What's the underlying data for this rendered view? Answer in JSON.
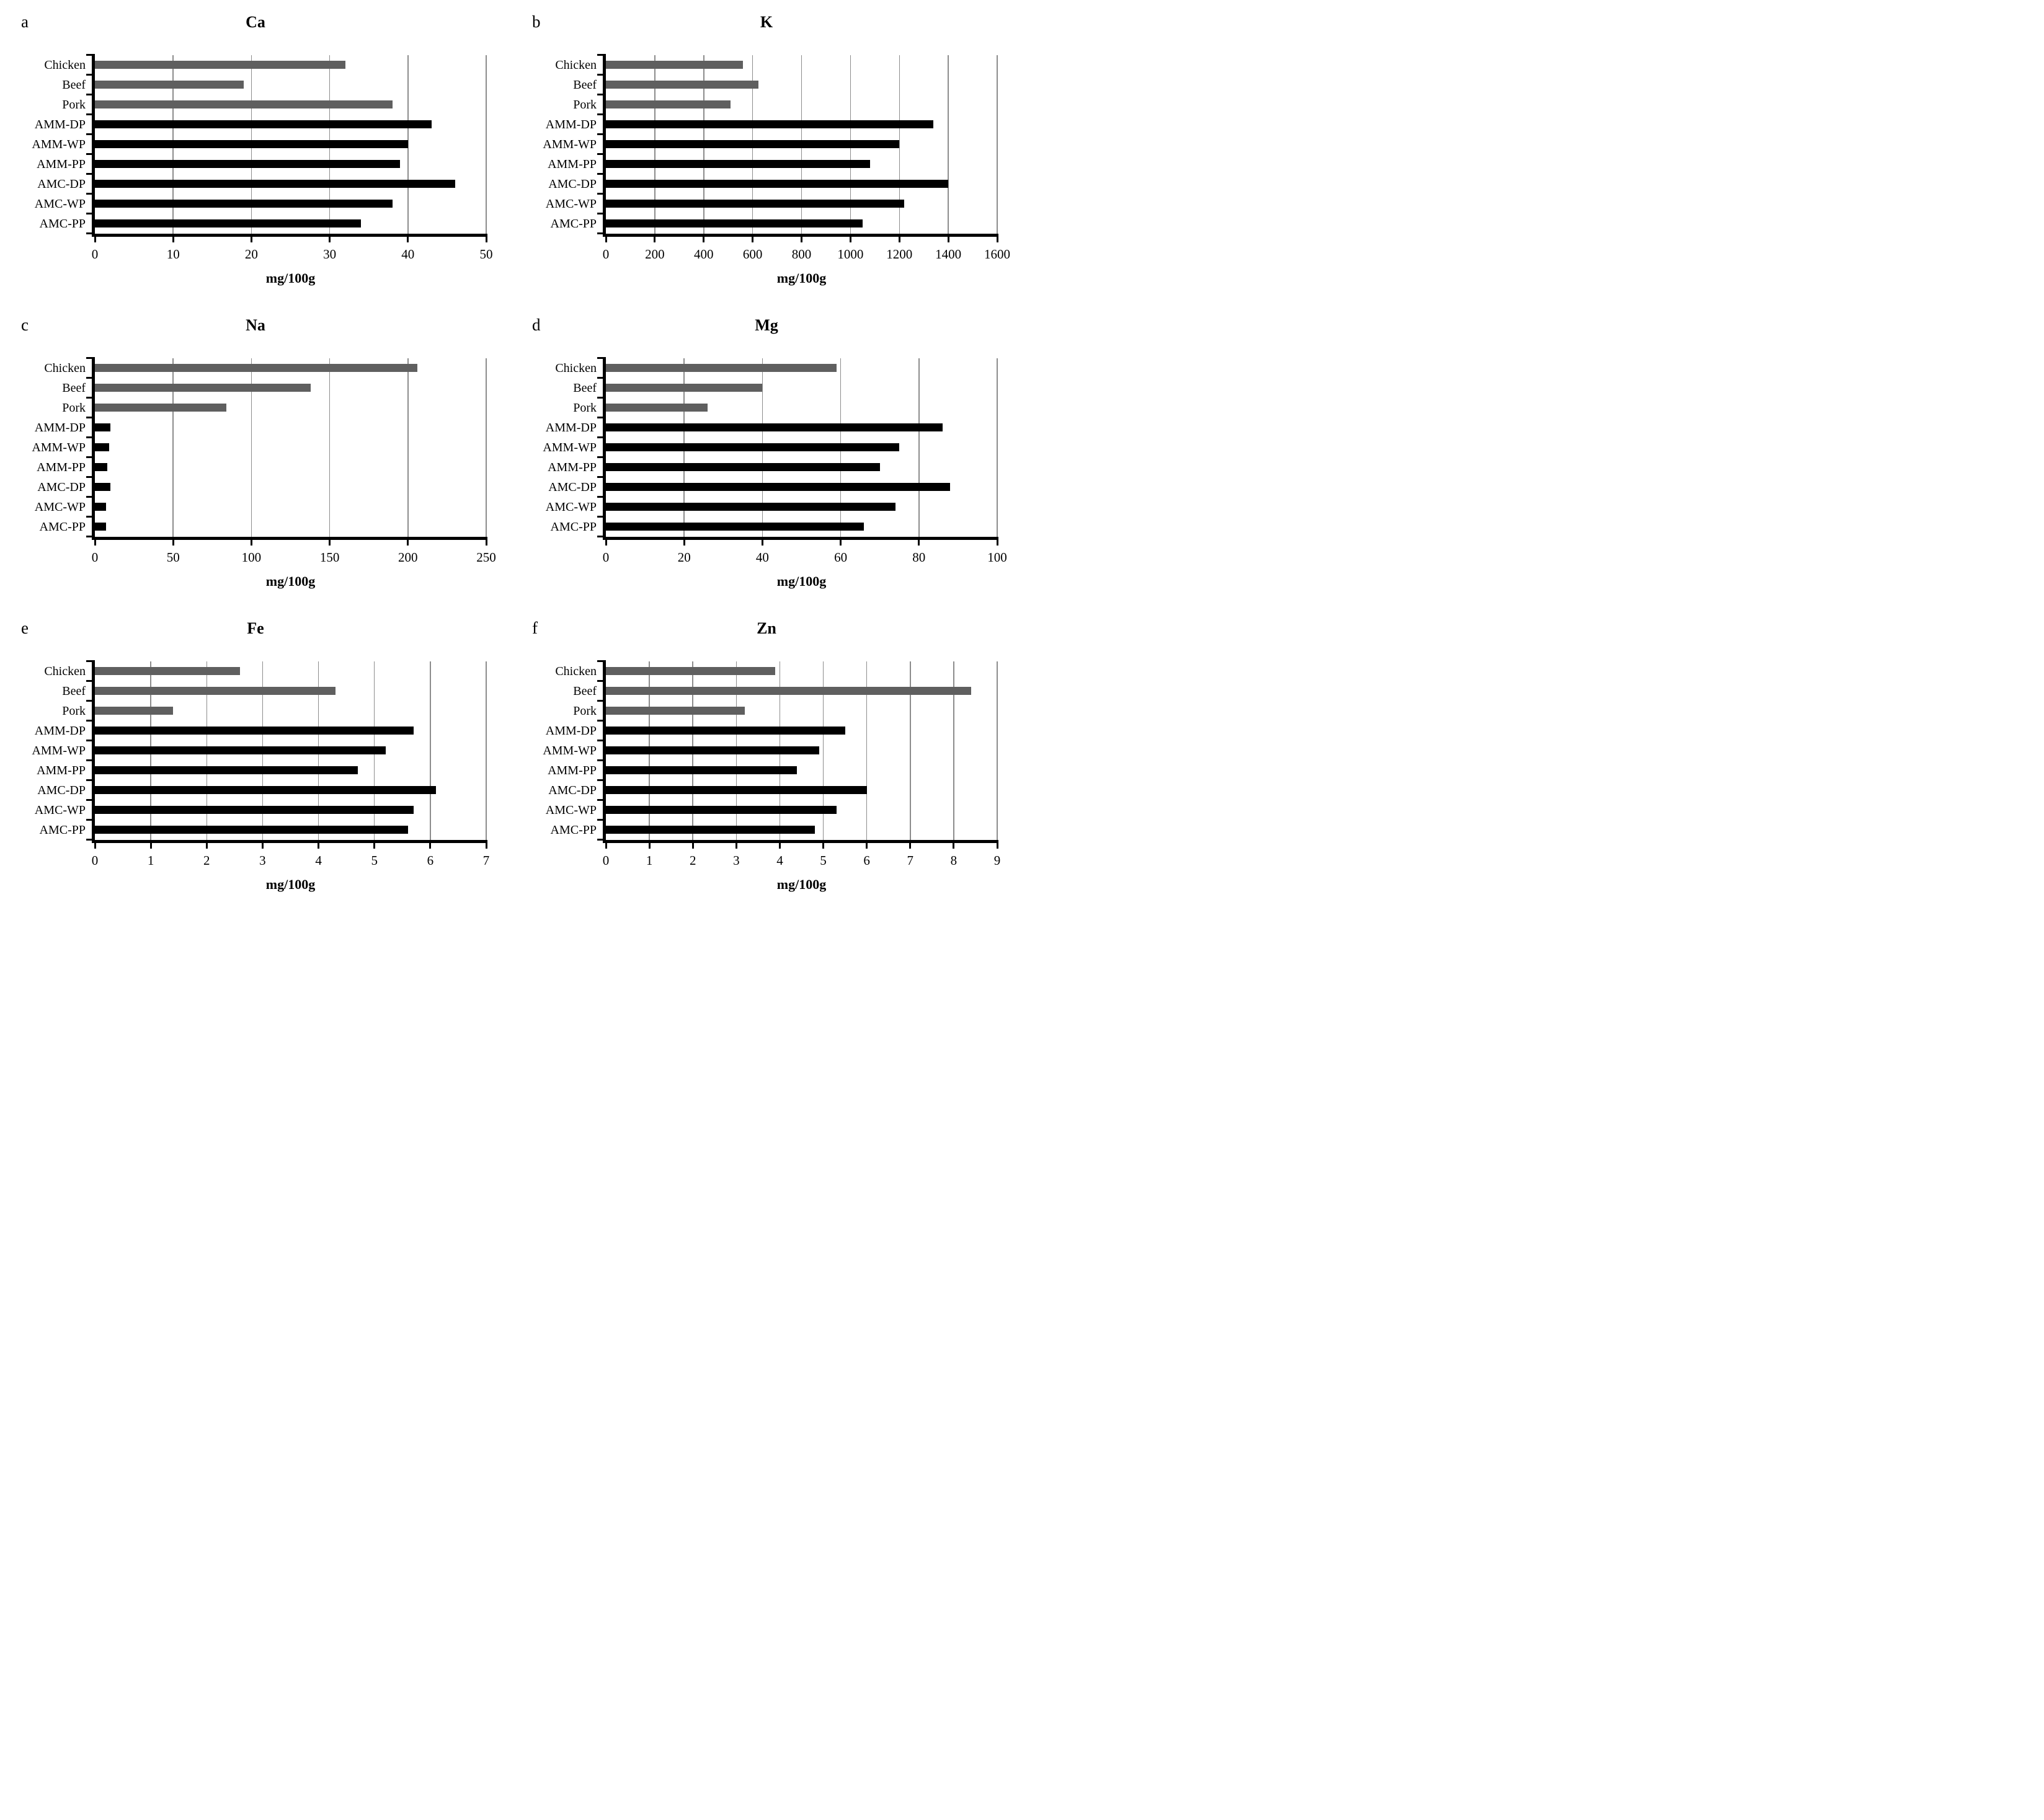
{
  "figure": {
    "unit_label": "mg/100g",
    "colors": {
      "meat_bar": "#5f5f5f",
      "product_bar": "#000000",
      "gridline": "#8c8c8c",
      "axis": "#000000",
      "text": "#000000",
      "background": "#ffffff"
    },
    "category_bar_colors": [
      "gray",
      "gray",
      "gray",
      "black",
      "black",
      "black",
      "black",
      "black",
      "black"
    ]
  },
  "chart_data": [
    {
      "panel": "a",
      "type": "bar",
      "orientation": "horizontal",
      "title": "Ca",
      "xlabel": "mg/100g",
      "categories": [
        "Chicken",
        "Beef",
        "Pork",
        "AMM-DP",
        "AMM-WP",
        "AMM-PP",
        "AMC-DP",
        "AMC-WP",
        "AMC-PP"
      ],
      "values": [
        32,
        19,
        38,
        43,
        40,
        39,
        46,
        38,
        34
      ],
      "xlim": [
        0,
        50
      ],
      "xticks": [
        0,
        10,
        20,
        30,
        40,
        50
      ],
      "grid": "vertical",
      "legend": "none"
    },
    {
      "panel": "b",
      "type": "bar",
      "orientation": "horizontal",
      "title": "K",
      "xlabel": "mg/100g",
      "categories": [
        "Chicken",
        "Beef",
        "Pork",
        "AMM-DP",
        "AMM-WP",
        "AMM-PP",
        "AMC-DP",
        "AMC-WP",
        "AMC-PP"
      ],
      "values": [
        560,
        625,
        510,
        1340,
        1200,
        1080,
        1400,
        1220,
        1050
      ],
      "xlim": [
        0,
        1600
      ],
      "xticks": [
        0,
        200,
        400,
        600,
        800,
        1000,
        1200,
        1400,
        1600
      ],
      "grid": "vertical",
      "legend": "none"
    },
    {
      "panel": "c",
      "type": "bar",
      "orientation": "horizontal",
      "title": "Na",
      "xlabel": "mg/100g",
      "categories": [
        "Chicken",
        "Beef",
        "Pork",
        "AMM-DP",
        "AMM-WP",
        "AMM-PP",
        "AMC-DP",
        "AMC-WP",
        "AMC-PP"
      ],
      "values": [
        206,
        138,
        84,
        10,
        9,
        8,
        10,
        7,
        7
      ],
      "xlim": [
        0,
        250
      ],
      "xticks": [
        0,
        50,
        100,
        150,
        200,
        250
      ],
      "grid": "vertical",
      "legend": "none"
    },
    {
      "panel": "d",
      "type": "bar",
      "orientation": "horizontal",
      "title": "Mg",
      "xlabel": "mg/100g",
      "categories": [
        "Chicken",
        "Beef",
        "Pork",
        "AMM-DP",
        "AMM-WP",
        "AMM-PP",
        "AMC-DP",
        "AMC-WP",
        "AMC-PP"
      ],
      "values": [
        59,
        40,
        26,
        86,
        75,
        70,
        88,
        74,
        66
      ],
      "xlim": [
        0,
        100
      ],
      "xticks": [
        0,
        20,
        40,
        60,
        80,
        100
      ],
      "grid": "vertical",
      "legend": "none"
    },
    {
      "panel": "e",
      "type": "bar",
      "orientation": "horizontal",
      "title": "Fe",
      "xlabel": "mg/100g",
      "categories": [
        "Chicken",
        "Beef",
        "Pork",
        "AMM-DP",
        "AMM-WP",
        "AMM-PP",
        "AMC-DP",
        "AMC-WP",
        "AMC-PP"
      ],
      "values": [
        2.6,
        4.3,
        1.4,
        5.7,
        5.2,
        4.7,
        6.1,
        5.7,
        5.6
      ],
      "xlim": [
        0,
        7
      ],
      "xticks": [
        0,
        1,
        2,
        3,
        4,
        5,
        6,
        7
      ],
      "grid": "vertical",
      "legend": "none"
    },
    {
      "panel": "f",
      "type": "bar",
      "orientation": "horizontal",
      "title": "Zn",
      "xlabel": "mg/100g",
      "categories": [
        "Chicken",
        "Beef",
        "Pork",
        "AMM-DP",
        "AMM-WP",
        "AMM-PP",
        "AMC-DP",
        "AMC-WP",
        "AMC-PP"
      ],
      "values": [
        3.9,
        8.4,
        3.2,
        5.5,
        4.9,
        4.4,
        6.0,
        5.3,
        4.8
      ],
      "xlim": [
        0,
        9
      ],
      "xticks": [
        0,
        1,
        2,
        3,
        4,
        5,
        6,
        7,
        8,
        9
      ],
      "grid": "vertical",
      "legend": "none"
    }
  ]
}
